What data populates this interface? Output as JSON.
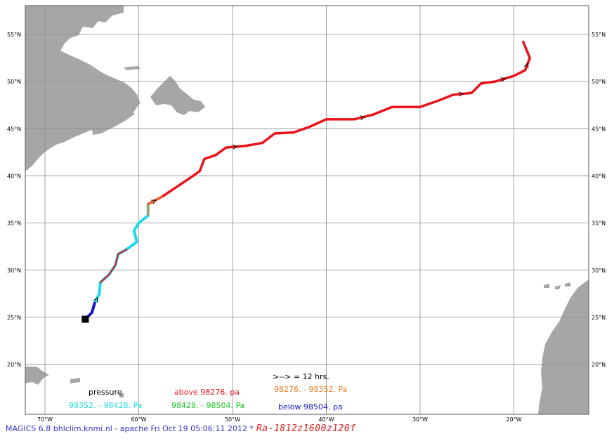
{
  "map": {
    "lat_ticks": [
      "55°N",
      "50°N",
      "45°N",
      "40°N",
      "35°N",
      "30°N",
      "25°N",
      "20°N"
    ],
    "lon_ticks": [
      "70°W",
      "60°W",
      "50°W",
      "40°W",
      "30°W",
      "20°W"
    ],
    "lat_values": [
      55,
      50,
      45,
      40,
      35,
      30,
      25,
      20
    ],
    "lon_values": [
      -70,
      -60,
      -50,
      -40,
      -30,
      -20
    ],
    "extent": {
      "lon": [
        -72,
        -14
      ],
      "lat": [
        15,
        59
      ]
    },
    "land_color": "#a6a6a6",
    "grid_color": "#8c8c8c"
  },
  "track": {
    "start_marker": "filled-square",
    "points": [
      [
        -65.7,
        24.8
      ],
      [
        -65.0,
        25.5
      ],
      [
        -64.7,
        26.5
      ],
      [
        -64.2,
        27.5
      ],
      [
        -64.1,
        28.7
      ],
      [
        -63.2,
        29.5
      ],
      [
        -62.5,
        30.5
      ],
      [
        -62.2,
        31.7
      ],
      [
        -61.3,
        32.2
      ],
      [
        -60.2,
        33.0
      ],
      [
        -60.5,
        34.2
      ],
      [
        -60.0,
        35.0
      ],
      [
        -59.0,
        35.8
      ],
      [
        -59.0,
        37.0
      ],
      [
        -57.5,
        37.8
      ],
      [
        -56.0,
        38.8
      ],
      [
        -54.5,
        39.8
      ],
      [
        -53.5,
        40.5
      ],
      [
        -53.0,
        41.8
      ],
      [
        -51.8,
        42.2
      ],
      [
        -50.7,
        43.0
      ],
      [
        -48.5,
        43.2
      ],
      [
        -46.8,
        43.5
      ],
      [
        -45.5,
        44.5
      ],
      [
        -43.5,
        44.6
      ],
      [
        -41.8,
        45.2
      ],
      [
        -40.0,
        46.0
      ],
      [
        -37.0,
        46.0
      ],
      [
        -35.0,
        46.5
      ],
      [
        -33.0,
        47.3
      ],
      [
        -30.0,
        47.3
      ],
      [
        -28.0,
        48.0
      ],
      [
        -26.5,
        48.6
      ],
      [
        -24.5,
        48.8
      ],
      [
        -23.5,
        49.8
      ],
      [
        -22.0,
        50.0
      ],
      [
        -20.0,
        50.6
      ],
      [
        -18.8,
        51.2
      ],
      [
        -18.3,
        52.5
      ],
      [
        -19.0,
        54.2
      ]
    ],
    "arrow_indices": [
      2,
      13,
      20,
      27,
      32,
      35,
      37
    ],
    "colors": {
      "above": "#e8141a",
      "band1": "#f07a1e",
      "band2": "#18c820",
      "band3": "#20d8e8",
      "below": "#1818c8"
    }
  },
  "legend": {
    "interval": ">--> = 12 hrs.",
    "title": "pressure",
    "above": "above 98276.  pa",
    "band1": "98276. - 98352.  Pa",
    "band3": "98352. - 98428.  Pa",
    "band2": "98428. - 98504.  Pa",
    "below": "below 98504.  pa"
  },
  "footer": {
    "text": "MAGICS 6.8 bhlclim.knmi.nl - apache Fri Oct 19 05:06:11 2012 *",
    "run_id": "Ra-1812z1600z120f"
  }
}
